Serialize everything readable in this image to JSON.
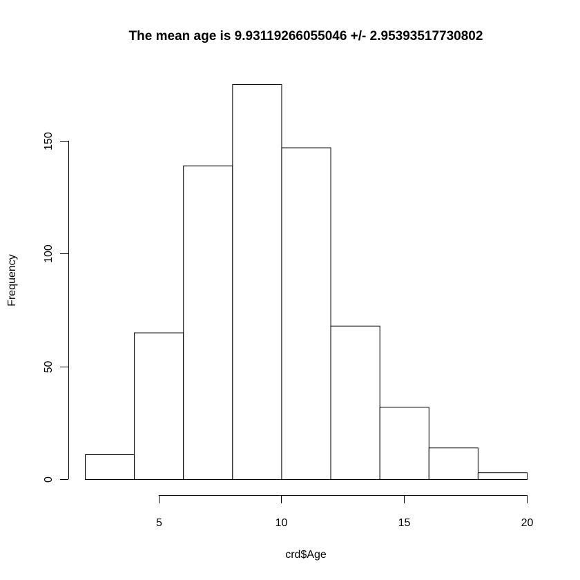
{
  "chart_data": {
    "type": "bar",
    "title": "The mean age is 9.93119266055046 +/- 2.95393517730802",
    "xlabel": "crd$Age",
    "ylabel": "Frequency",
    "bins": [
      {
        "from": 2,
        "to": 4,
        "count": 11
      },
      {
        "from": 4,
        "to": 6,
        "count": 65
      },
      {
        "from": 6,
        "to": 8,
        "count": 139
      },
      {
        "from": 8,
        "to": 10,
        "count": 175
      },
      {
        "from": 10,
        "to": 12,
        "count": 147
      },
      {
        "from": 12,
        "to": 14,
        "count": 68
      },
      {
        "from": 14,
        "to": 16,
        "count": 32
      },
      {
        "from": 16,
        "to": 18,
        "count": 14
      },
      {
        "from": 18,
        "to": 20,
        "count": 3
      }
    ],
    "xlim": [
      2,
      20
    ],
    "ylim": [
      0,
      175
    ],
    "xticks": [
      5,
      10,
      15,
      20
    ],
    "yticks": [
      0,
      50,
      100,
      150
    ],
    "grid": false,
    "legend": "none"
  }
}
